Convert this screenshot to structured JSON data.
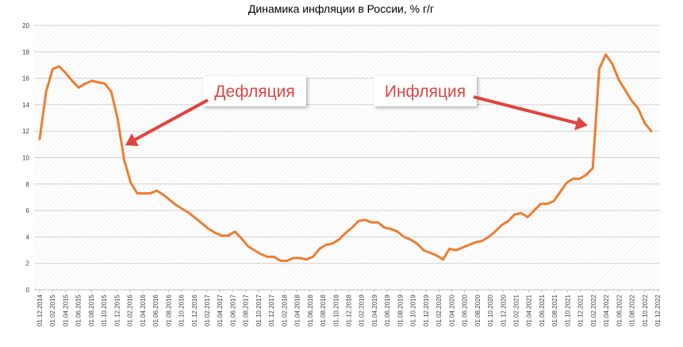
{
  "chart_data": {
    "type": "line",
    "title": "Динамика инфляции в России, % г/г",
    "xlabel": "",
    "ylabel": "",
    "ylim": [
      0,
      20
    ],
    "yticks": [
      0,
      2,
      4,
      6,
      8,
      10,
      12,
      14,
      16,
      18,
      20
    ],
    "grid": true,
    "line_color": "#ED7D31",
    "x_tick_labels": [
      "01.12.2014",
      "01.02.2015",
      "01.04.2015",
      "01.06.2015",
      "01.08.2015",
      "01.10.2015",
      "01.12.2015",
      "01.02.2016",
      "01.04.2016",
      "01.06.2016",
      "01.08.2016",
      "01.10.2016",
      "01.12.2016",
      "01.02.2017",
      "01.04.2017",
      "01.06.2017",
      "01.08.2017",
      "01.10.2017",
      "01.12.2017",
      "01.02.2018",
      "01.04.2018",
      "01.06.2018",
      "01.08.2018",
      "01.10.2018",
      "01.12.2018",
      "01.02.2019",
      "01.04.2019",
      "01.06.2019",
      "01.08.2019",
      "01.10.2019",
      "01.12.2019",
      "01.02.2020",
      "01.04.2020",
      "01.06.2020",
      "01.08.2020",
      "01.10.2020",
      "01.12.2020",
      "01.02.2021",
      "01.04.2021",
      "01.06.2021",
      "01.08.2021",
      "01.10.2021",
      "01.12.2021",
      "01.02.2022",
      "01.04.2022",
      "01.06.2022",
      "01.08.2022",
      "01.10.2022",
      "01.12.2022"
    ],
    "series": [
      {
        "values": [
          11.4,
          15.0,
          16.7,
          16.9,
          16.4,
          15.8,
          15.3,
          15.6,
          15.8,
          15.7,
          15.6,
          15.0,
          12.9,
          9.8,
          8.1,
          7.3,
          7.3,
          7.3,
          7.5,
          7.2,
          6.8,
          6.4,
          6.1,
          5.8,
          5.4,
          5.0,
          4.6,
          4.3,
          4.1,
          4.1,
          4.4,
          3.9,
          3.3,
          3.0,
          2.7,
          2.5,
          2.5,
          2.2,
          2.2,
          2.4,
          2.4,
          2.3,
          2.5,
          3.1,
          3.4,
          3.5,
          3.8,
          4.3,
          4.7,
          5.2,
          5.3,
          5.1,
          5.1,
          4.7,
          4.6,
          4.4,
          4.0,
          3.8,
          3.5,
          3.0,
          2.8,
          2.6,
          2.3,
          3.1,
          3.0,
          3.2,
          3.4,
          3.6,
          3.7,
          4.0,
          4.4,
          4.9,
          5.2,
          5.7,
          5.8,
          5.5,
          6.0,
          6.5,
          6.5,
          6.7,
          7.4,
          8.1,
          8.4,
          8.4,
          8.7,
          9.2,
          16.7,
          17.8,
          17.1,
          15.9,
          15.1,
          14.3,
          13.7,
          12.6,
          12.0
        ]
      }
    ],
    "annotations": [
      {
        "text": "Дефляция"
      },
      {
        "text": "Инфляция"
      }
    ]
  }
}
